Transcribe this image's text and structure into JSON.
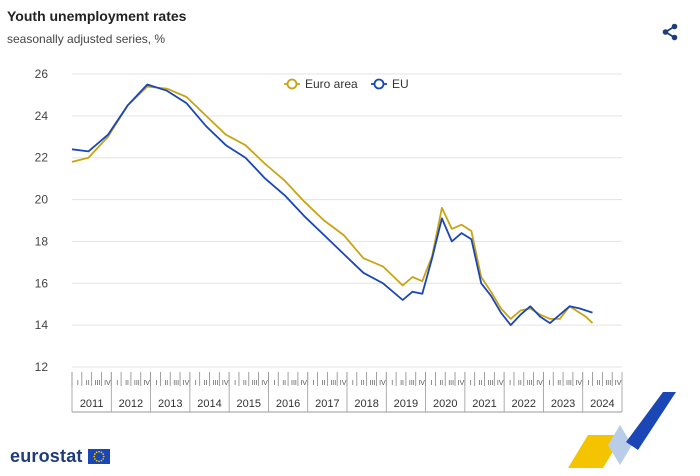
{
  "header": {
    "title": "Youth unemployment rates",
    "subtitle": "seasonally adjusted series, %"
  },
  "brand": {
    "name": "eurostat"
  },
  "icons": {
    "share": "share-icon",
    "flag": "eu-flag-icon"
  },
  "chart_data": {
    "type": "line",
    "title": "Youth unemployment rates",
    "subtitle": "seasonally adjusted series, %",
    "x_start": "2011-01",
    "x_end": "2024-12",
    "x_unit": "month",
    "ylim": [
      12,
      26
    ],
    "yticks": [
      12,
      14,
      16,
      18,
      20,
      22,
      24,
      26
    ],
    "years": [
      "2011",
      "2012",
      "2013",
      "2014",
      "2015",
      "2016",
      "2017",
      "2018",
      "2019",
      "2020",
      "2021",
      "2022",
      "2023",
      "2024"
    ],
    "quarter_labels": [
      "I",
      "II",
      "III",
      "IV"
    ],
    "grid": true,
    "legend_position": "top-center",
    "series": [
      {
        "name": "Euro area",
        "color": "#c8a415",
        "points": [
          [
            "2011-01",
            21.8
          ],
          [
            "2011-06",
            22.0
          ],
          [
            "2011-12",
            23.0
          ],
          [
            "2012-06",
            24.5
          ],
          [
            "2012-12",
            25.4
          ],
          [
            "2013-06",
            25.3
          ],
          [
            "2013-12",
            24.9
          ],
          [
            "2014-06",
            24.0
          ],
          [
            "2014-12",
            23.1
          ],
          [
            "2015-06",
            22.6
          ],
          [
            "2015-12",
            21.7
          ],
          [
            "2016-06",
            20.9
          ],
          [
            "2016-12",
            19.9
          ],
          [
            "2017-06",
            19.0
          ],
          [
            "2017-12",
            18.3
          ],
          [
            "2018-06",
            17.2
          ],
          [
            "2018-12",
            16.8
          ],
          [
            "2019-06",
            15.9
          ],
          [
            "2019-09",
            16.3
          ],
          [
            "2019-12",
            16.1
          ],
          [
            "2020-03",
            17.3
          ],
          [
            "2020-06",
            19.6
          ],
          [
            "2020-09",
            18.6
          ],
          [
            "2020-12",
            18.8
          ],
          [
            "2021-03",
            18.5
          ],
          [
            "2021-06",
            16.3
          ],
          [
            "2021-09",
            15.6
          ],
          [
            "2021-12",
            14.8
          ],
          [
            "2022-03",
            14.3
          ],
          [
            "2022-06",
            14.7
          ],
          [
            "2022-09",
            14.8
          ],
          [
            "2022-12",
            14.5
          ],
          [
            "2023-03",
            14.3
          ],
          [
            "2023-06",
            14.3
          ],
          [
            "2023-09",
            14.9
          ],
          [
            "2023-12",
            14.6
          ],
          [
            "2024-02",
            14.4
          ],
          [
            "2024-04",
            14.1
          ]
        ]
      },
      {
        "name": "EU",
        "color": "#1b46b5",
        "points": [
          [
            "2011-01",
            22.4
          ],
          [
            "2011-06",
            22.3
          ],
          [
            "2011-12",
            23.1
          ],
          [
            "2012-06",
            24.5
          ],
          [
            "2012-12",
            25.5
          ],
          [
            "2013-06",
            25.2
          ],
          [
            "2013-12",
            24.6
          ],
          [
            "2014-06",
            23.5
          ],
          [
            "2014-12",
            22.6
          ],
          [
            "2015-06",
            22.0
          ],
          [
            "2015-12",
            21.0
          ],
          [
            "2016-06",
            20.2
          ],
          [
            "2016-12",
            19.2
          ],
          [
            "2017-06",
            18.3
          ],
          [
            "2017-12",
            17.4
          ],
          [
            "2018-06",
            16.5
          ],
          [
            "2018-12",
            16.0
          ],
          [
            "2019-06",
            15.2
          ],
          [
            "2019-09",
            15.6
          ],
          [
            "2019-12",
            15.5
          ],
          [
            "2020-03",
            17.2
          ],
          [
            "2020-06",
            19.1
          ],
          [
            "2020-09",
            18.0
          ],
          [
            "2020-12",
            18.4
          ],
          [
            "2021-03",
            18.1
          ],
          [
            "2021-06",
            16.0
          ],
          [
            "2021-09",
            15.4
          ],
          [
            "2021-12",
            14.6
          ],
          [
            "2022-03",
            14.0
          ],
          [
            "2022-06",
            14.5
          ],
          [
            "2022-09",
            14.9
          ],
          [
            "2022-12",
            14.4
          ],
          [
            "2023-03",
            14.1
          ],
          [
            "2023-06",
            14.5
          ],
          [
            "2023-09",
            14.9
          ],
          [
            "2023-12",
            14.8
          ],
          [
            "2024-02",
            14.7
          ],
          [
            "2024-04",
            14.6
          ]
        ]
      }
    ]
  }
}
